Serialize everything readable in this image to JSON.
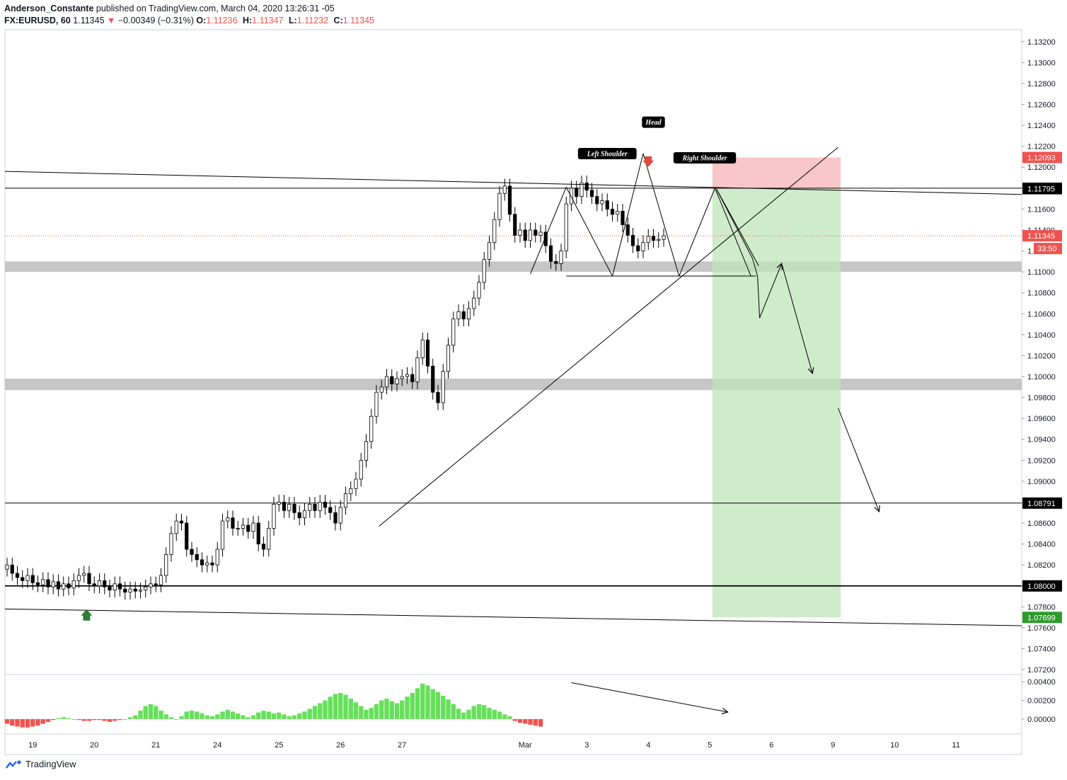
{
  "header": {
    "author": "Anderson_Constante",
    "published_text": "published on TradingView.com, March 04, 2020 13:26:31 -05",
    "symbol": "FX:EURUSD, 60",
    "last": "1.11345",
    "change": "−0.00349 (−0.31%)",
    "o_label": "O:",
    "o_value": "1.11236",
    "h_label": "H:",
    "h_value": "1.11347",
    "l_label": "L:",
    "l_value": "1.11232",
    "c_label": "C:",
    "c_value": "1.11345"
  },
  "footer": {
    "brand": "TradingView"
  },
  "colors": {
    "bull": "#000000",
    "bear": "#000000",
    "stop_zone": "#f8b9b9",
    "target_zone": "#bfe5b8",
    "zone_band": "#b3b3b3",
    "price_line": "#ef5350",
    "osc_up": "#66e05a",
    "osc_down": "#ef5350",
    "arrow_up": "#2e7d32",
    "arrow_down": "#e04a3a"
  },
  "chart_data": {
    "type": "candlestick",
    "y_axis": {
      "ticks": [
        "1.13200",
        "1.13000",
        "1.12800",
        "1.12600",
        "1.12400",
        "1.12200",
        "1.12000",
        "1.11800",
        "1.11600",
        "1.11400",
        "1.11200",
        "1.11000",
        "1.10800",
        "1.10600",
        "1.10400",
        "1.10200",
        "1.10000",
        "1.09800",
        "1.09600",
        "1.09400",
        "1.09200",
        "1.09000",
        "1.08800",
        "1.08600",
        "1.08400",
        "1.08200",
        "1.08000",
        "1.07800",
        "1.07600",
        "1.07400",
        "1.07200"
      ],
      "range": [
        1.0716,
        1.133
      ]
    },
    "x_axis": {
      "ticks": [
        "19",
        "20",
        "21",
        "24",
        "25",
        "26",
        "27",
        "Mar",
        "3",
        "4",
        "5",
        "6",
        "9",
        "10",
        "11"
      ],
      "tick_index": [
        5,
        17,
        29,
        41,
        53,
        65,
        77,
        101,
        113,
        125,
        137,
        149,
        161,
        173,
        185
      ]
    },
    "price_badges": [
      {
        "label": "1.12093",
        "value": 1.12093,
        "bg": "#ef5350",
        "fg": "#ffffff"
      },
      {
        "label": "1.11800",
        "value": 1.118,
        "bg": "#555555",
        "fg": "#ffffff"
      },
      {
        "label": "1.11795",
        "value": 1.11795,
        "bg": "#000000",
        "fg": "#ffffff"
      },
      {
        "label": "1.11345",
        "value": 1.11345,
        "bg": "#ef5350",
        "fg": "#ffffff"
      },
      {
        "label": "1.08791",
        "value": 1.08791,
        "bg": "#000000",
        "fg": "#ffffff"
      },
      {
        "label": "1.08000",
        "value": 1.08,
        "bg": "#000000",
        "fg": "#ffffff"
      },
      {
        "label": "1.07699",
        "value": 1.07699,
        "bg": "#2e9a2e",
        "fg": "#ffffff"
      }
    ],
    "countdown": "33:50",
    "horizontal_levels": [
      1.118,
      1.08791,
      1.08
    ],
    "current_price": 1.11345,
    "zones": [
      {
        "from": 1.11,
        "to": 1.111
      },
      {
        "from": 1.0987,
        "to": 1.0998
      }
    ],
    "pattern_labels": [
      {
        "text": "Left Shoulder",
        "idx": 117,
        "price": 1.1213
      },
      {
        "text": "Head",
        "idx": 126,
        "price": 1.1243
      },
      {
        "text": "Right Shoulder",
        "idx": 136,
        "price": 1.1209
      }
    ],
    "close": [
      1.082,
      1.0812,
      1.0808,
      1.0805,
      1.081,
      1.0803,
      1.0801,
      1.0806,
      1.0799,
      1.0804,
      1.0797,
      1.0802,
      1.0798,
      1.0805,
      1.081,
      1.0812,
      1.0802,
      1.08,
      1.0805,
      1.0799,
      1.0796,
      1.0802,
      1.0797,
      1.0794,
      1.0797,
      1.0795,
      1.0796,
      1.0799,
      1.0802,
      1.0801,
      1.081,
      1.083,
      1.085,
      1.0862,
      1.086,
      1.0835,
      1.083,
      1.0825,
      1.082,
      1.0822,
      1.082,
      1.0835,
      1.0862,
      1.0865,
      1.0855,
      1.0855,
      1.0858,
      1.0852,
      1.086,
      1.084,
      1.0835,
      1.0855,
      1.0878,
      1.088,
      1.0872,
      1.0878,
      1.087,
      1.0865,
      1.0872,
      1.0878,
      1.0872,
      1.088,
      1.0875,
      1.087,
      1.086,
      1.0875,
      1.0888,
      1.0893,
      1.0902,
      1.092,
      1.0938,
      1.0962,
      1.0985,
      1.099,
      1.1,
      1.0993,
      1.0998,
      1.1,
      1.1002,
      1.0995,
      1.1018,
      1.1035,
      1.101,
      1.0985,
      1.0975,
      1.1005,
      1.103,
      1.1055,
      1.1062,
      1.1055,
      1.1065,
      1.1075,
      1.109,
      1.1112,
      1.1128,
      1.115,
      1.1175,
      1.1182,
      1.1155,
      1.1135,
      1.114,
      1.113,
      1.114,
      1.1135,
      1.1138,
      1.1125,
      1.111,
      1.1108,
      1.112,
      1.1165,
      1.118,
      1.1172,
      1.1185,
      1.1178,
      1.1172,
      1.1165,
      1.1168,
      1.116,
      1.1155,
      1.1158,
      1.1145,
      1.1135,
      1.1125,
      1.112,
      1.1128,
      1.1134,
      1.113,
      1.1131,
      1.11345
    ],
    "oscillator": {
      "ticks": [
        "0.00400",
        "0.00200",
        "0.00000"
      ],
      "range": [
        -0.0016,
        0.0047
      ],
      "values": [
        -0.0005,
        -0.0007,
        -0.0008,
        -0.0009,
        -0.0009,
        -0.0008,
        -0.0007,
        -0.0005,
        -0.0003,
        -0.0001,
        0.0001,
        0.0002,
        0.0001,
        0.0,
        -0.0001,
        -0.0002,
        -0.0002,
        -0.0001,
        -0.0001,
        -0.0002,
        -0.0003,
        -0.0002,
        -0.0001,
        0.0,
        0.0002,
        0.0004,
        0.0009,
        0.0014,
        0.0016,
        0.0014,
        0.0009,
        0.0005,
        0.0002,
        0.0,
        0.0003,
        0.0008,
        0.0009,
        0.0008,
        0.0006,
        0.0004,
        0.0003,
        0.0005,
        0.0008,
        0.001,
        0.0008,
        0.0006,
        0.0004,
        0.0002,
        0.0004,
        0.0007,
        0.0009,
        0.0008,
        0.0006,
        0.0007,
        0.0005,
        0.0003,
        0.0004,
        0.0006,
        0.0008,
        0.0011,
        0.0014,
        0.0017,
        0.002,
        0.0024,
        0.0027,
        0.0028,
        0.0026,
        0.0022,
        0.0018,
        0.0014,
        0.001,
        0.0012,
        0.0016,
        0.002,
        0.0022,
        0.0019,
        0.0017,
        0.002,
        0.0024,
        0.0028,
        0.0033,
        0.0038,
        0.0036,
        0.0032,
        0.0029,
        0.0025,
        0.0021,
        0.0016,
        0.0011,
        0.0007,
        0.001,
        0.0014,
        0.0016,
        0.0015,
        0.0012,
        0.001,
        0.0008,
        0.0005,
        0.0003,
        -0.0002,
        -0.0004,
        -0.0005,
        -0.0006,
        -0.0007,
        -0.0008
      ]
    }
  }
}
